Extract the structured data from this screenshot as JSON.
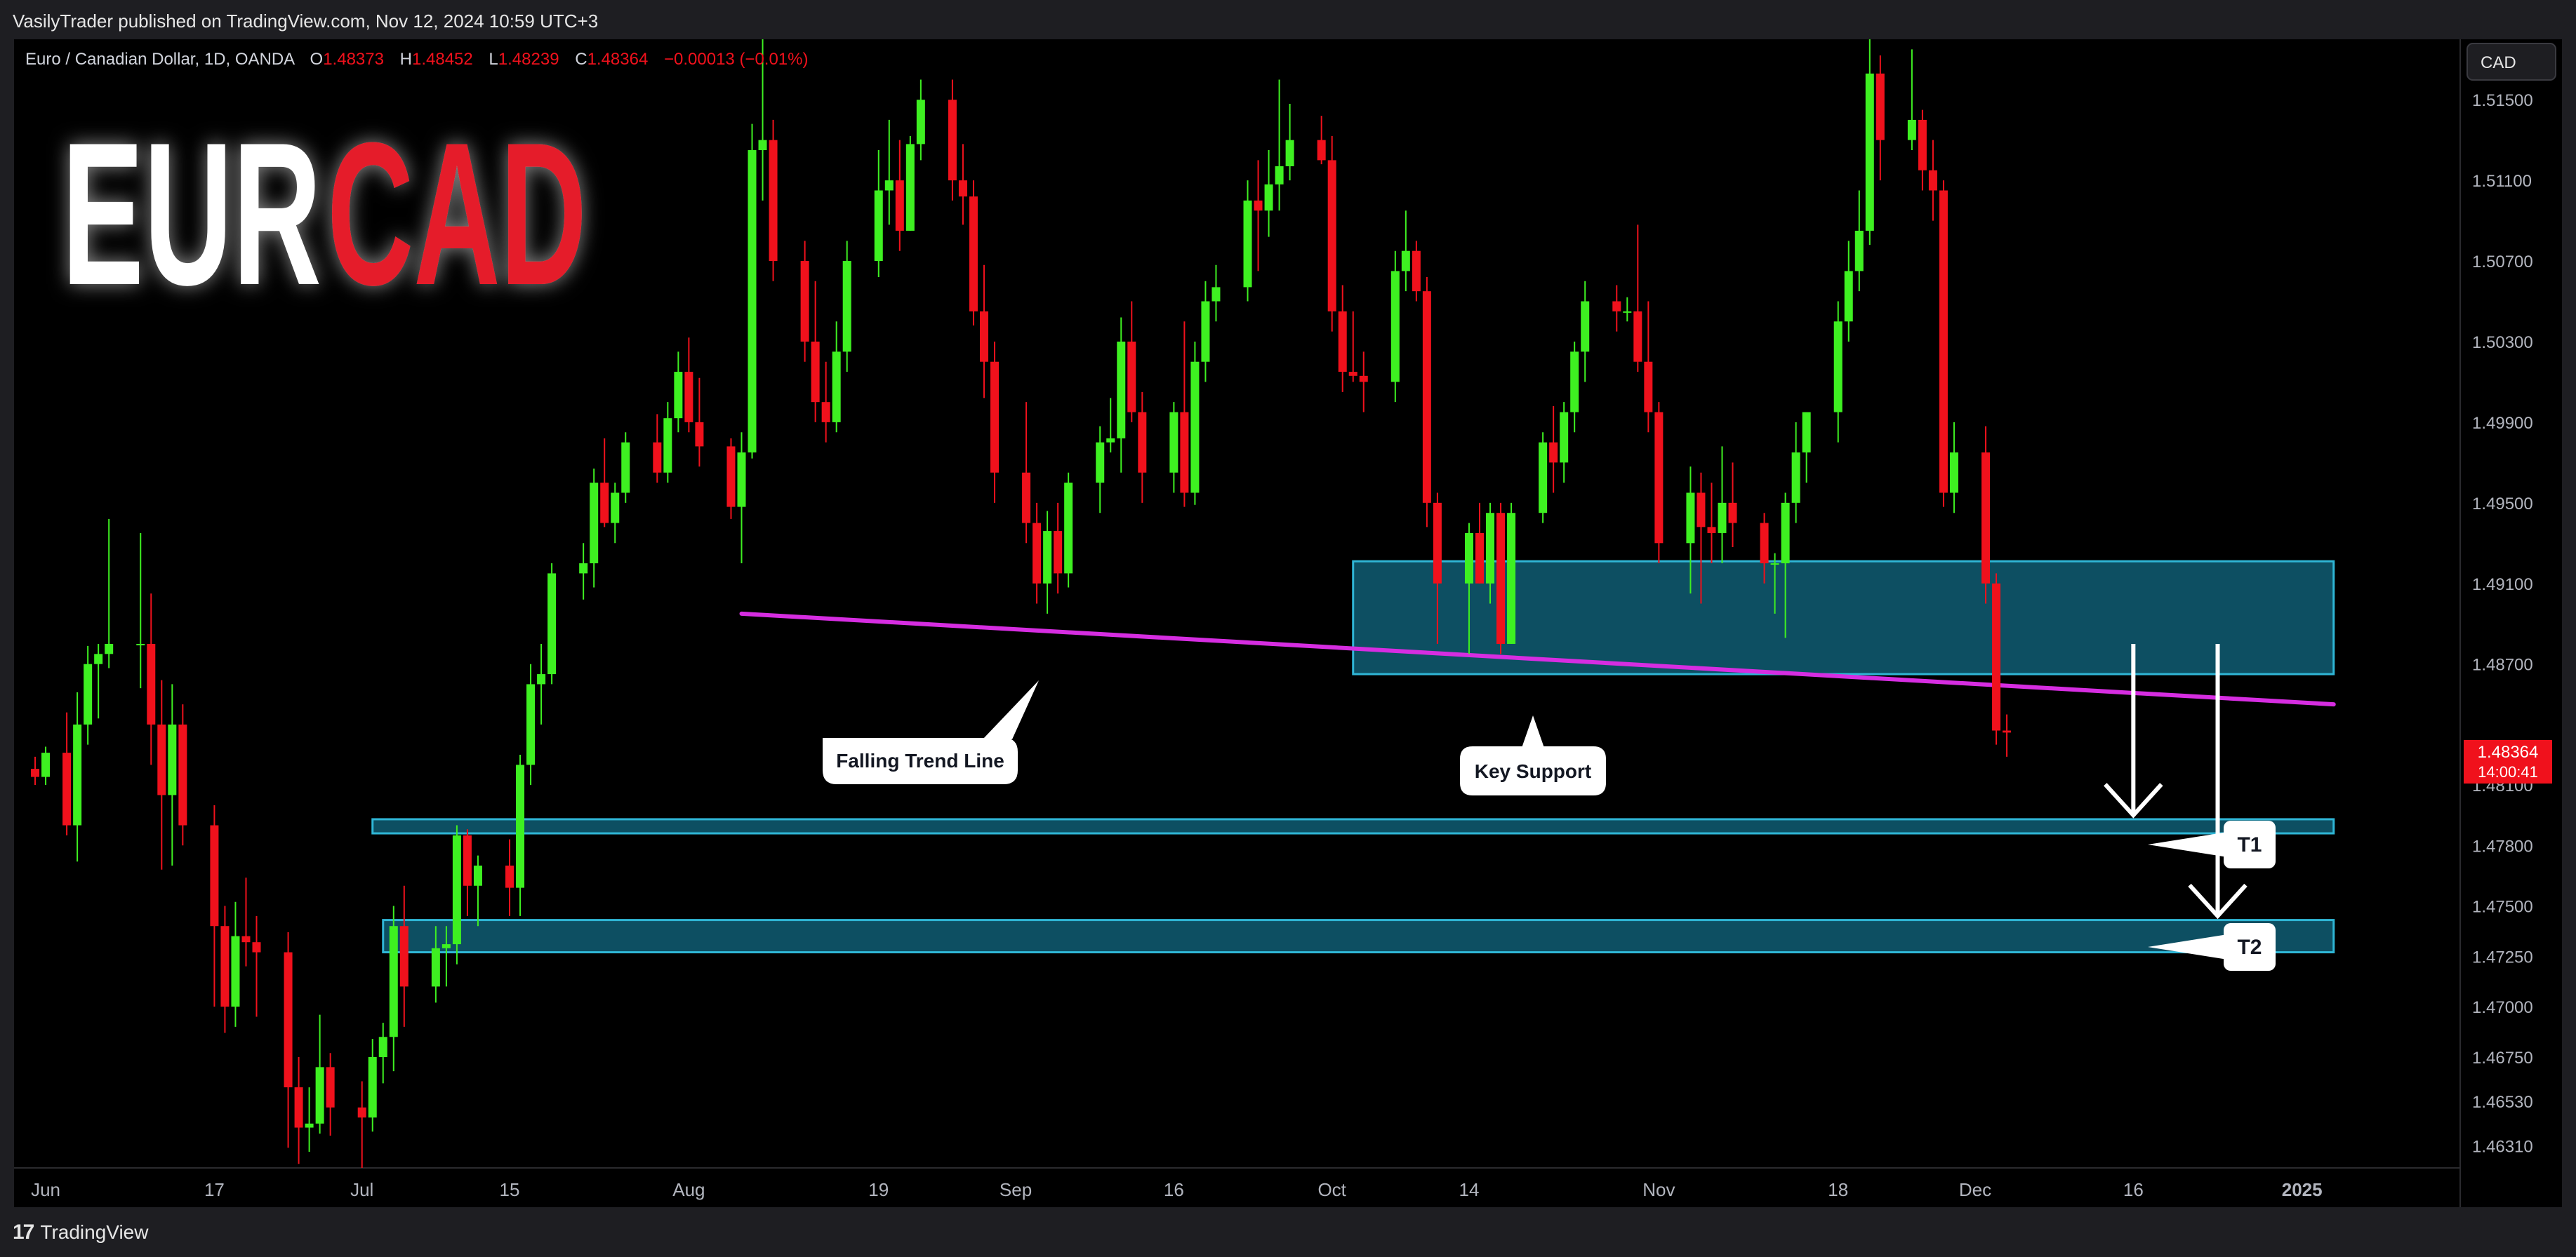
{
  "header": {
    "publish_line": "VasilyTrader published on TradingView.com, Nov 12, 2024 10:59 UTC+3"
  },
  "footer": {
    "brand_glyph": "17",
    "brand_name": "TradingView"
  },
  "symbol": {
    "name": "Euro / Canadian Dollar, 1D, OANDA",
    "o_label": "O",
    "o_value": "1.48373",
    "h_label": "H",
    "h_value": "1.48452",
    "l_label": "L",
    "l_value": "1.48239",
    "c_label": "C",
    "c_value": "1.48364",
    "change": "−0.00013 (−0.01%)"
  },
  "currency_button": "CAD",
  "big_title": {
    "part1": "EUR",
    "part2": "CAD"
  },
  "price_tag": {
    "price": "1.48364",
    "countdown": "14:00:41"
  },
  "annotations": {
    "trend": "Falling Trend Line",
    "support": "Key Support",
    "t1": "T1",
    "t2": "T2"
  },
  "colors": {
    "up": "#3ef021",
    "down": "#f0111c",
    "trend_line": "#d62de1",
    "zone_fill": "#0f5d73",
    "zone_stroke": "#2fb6d6",
    "title_red": "#e51e2b",
    "background": "#000000"
  },
  "chart_data": {
    "type": "candlestick",
    "x_ticks": [
      "Jun",
      "17",
      "Jul",
      "15",
      "Aug",
      "19",
      "Sep",
      "16",
      "Oct",
      "14",
      "Nov",
      "18",
      "Dec",
      "16",
      "2025"
    ],
    "y_ticks": [
      "1.51500",
      "1.51100",
      "1.50700",
      "1.50300",
      "1.49900",
      "1.49500",
      "1.49100",
      "1.48700",
      "1.48100",
      "1.47800",
      "1.47500",
      "1.47250",
      "1.47000",
      "1.46750",
      "1.46530",
      "1.46310"
    ],
    "y_range": [
      1.462,
      1.518
    ],
    "x_range": [
      "2024-05-29",
      "2025-01-16"
    ],
    "ohlc": [
      [
        "2024-05-31",
        1.4818,
        1.4824,
        1.481,
        1.4814
      ],
      [
        "2024-06-01",
        1.4814,
        1.4829,
        1.481,
        1.4826
      ],
      [
        "2024-06-03",
        1.4826,
        1.4846,
        1.4785,
        1.479
      ],
      [
        "2024-06-04",
        1.479,
        1.4856,
        1.4772,
        1.484
      ],
      [
        "2024-06-05",
        1.484,
        1.4879,
        1.483,
        1.487
      ],
      [
        "2024-06-06",
        1.487,
        1.488,
        1.4843,
        1.4875
      ],
      [
        "2024-06-07",
        1.4875,
        1.4942,
        1.4868,
        1.488
      ],
      [
        "2024-06-10",
        1.488,
        1.4935,
        1.4858,
        1.488
      ],
      [
        "2024-06-11",
        1.488,
        1.4905,
        1.482,
        1.484
      ],
      [
        "2024-06-12",
        1.484,
        1.4862,
        1.4768,
        1.4805
      ],
      [
        "2024-06-13",
        1.4805,
        1.486,
        1.477,
        1.484
      ],
      [
        "2024-06-14",
        1.484,
        1.485,
        1.478,
        1.479
      ],
      [
        "2024-06-17",
        1.479,
        1.48,
        1.47,
        1.474
      ],
      [
        "2024-06-18",
        1.474,
        1.475,
        1.4687,
        1.47
      ],
      [
        "2024-06-19",
        1.47,
        1.4752,
        1.469,
        1.4735
      ],
      [
        "2024-06-20",
        1.4735,
        1.4764,
        1.472,
        1.4732
      ],
      [
        "2024-06-21",
        1.4732,
        1.4745,
        1.4695,
        1.4727
      ],
      [
        "2024-06-24",
        1.4727,
        1.4737,
        1.463,
        1.466
      ],
      [
        "2024-06-25",
        1.466,
        1.4675,
        1.4622,
        1.464
      ],
      [
        "2024-06-26",
        1.464,
        1.466,
        1.4628,
        1.4642
      ],
      [
        "2024-06-27",
        1.4642,
        1.4696,
        1.4637,
        1.467
      ],
      [
        "2024-06-28",
        1.467,
        1.4677,
        1.4636,
        1.465
      ],
      [
        "2024-07-01",
        1.465,
        1.4663,
        1.462,
        1.4645
      ],
      [
        "2024-07-02",
        1.4645,
        1.4684,
        1.4638,
        1.4675
      ],
      [
        "2024-07-03",
        1.4675,
        1.4692,
        1.4662,
        1.4685
      ],
      [
        "2024-07-04",
        1.4685,
        1.475,
        1.4668,
        1.474
      ],
      [
        "2024-07-05",
        1.474,
        1.476,
        1.469,
        1.471
      ],
      [
        "2024-07-08",
        1.471,
        1.474,
        1.4702,
        1.4729
      ],
      [
        "2024-07-09",
        1.4729,
        1.474,
        1.471,
        1.4731
      ],
      [
        "2024-07-10",
        1.4731,
        1.479,
        1.4721,
        1.4785
      ],
      [
        "2024-07-11",
        1.4785,
        1.4788,
        1.4745,
        1.476
      ],
      [
        "2024-07-12",
        1.476,
        1.4775,
        1.474,
        1.477
      ],
      [
        "2024-07-15",
        1.477,
        1.4783,
        1.4745,
        1.4759
      ],
      [
        "2024-07-16",
        1.4759,
        1.4825,
        1.4745,
        1.482
      ],
      [
        "2024-07-17",
        1.482,
        1.487,
        1.481,
        1.486
      ],
      [
        "2024-07-18",
        1.486,
        1.488,
        1.484,
        1.4865
      ],
      [
        "2024-07-19",
        1.4865,
        1.492,
        1.486,
        1.4915
      ],
      [
        "2024-07-22",
        1.4915,
        1.493,
        1.4902,
        1.492
      ],
      [
        "2024-07-23",
        1.492,
        1.4967,
        1.4908,
        1.496
      ],
      [
        "2024-07-24",
        1.496,
        1.4982,
        1.4938,
        1.494
      ],
      [
        "2024-07-25",
        1.494,
        1.496,
        1.493,
        1.4955
      ],
      [
        "2024-07-26",
        1.4955,
        1.4985,
        1.495,
        1.498
      ],
      [
        "2024-07-29",
        1.498,
        1.4994,
        1.496,
        1.4965
      ],
      [
        "2024-07-30",
        1.4965,
        1.5,
        1.496,
        1.4992
      ],
      [
        "2024-07-31",
        1.4992,
        1.5025,
        1.4985,
        1.5015
      ],
      [
        "2024-08-01",
        1.5015,
        1.5032,
        1.4985,
        1.499
      ],
      [
        "2024-08-02",
        1.499,
        1.5012,
        1.4968,
        1.4978
      ],
      [
        "2024-08-05",
        1.4978,
        1.4982,
        1.4942,
        1.4948
      ],
      [
        "2024-08-06",
        1.4948,
        1.4985,
        1.492,
        1.4975
      ],
      [
        "2024-08-07",
        1.4975,
        1.5138,
        1.4972,
        1.5125
      ],
      [
        "2024-08-08",
        1.5125,
        1.518,
        1.51,
        1.513
      ],
      [
        "2024-08-09",
        1.513,
        1.514,
        1.506,
        1.507
      ],
      [
        "2024-08-12",
        1.507,
        1.508,
        1.502,
        1.503
      ],
      [
        "2024-08-13",
        1.503,
        1.506,
        1.499,
        1.5
      ],
      [
        "2024-08-14",
        1.5,
        1.502,
        1.498,
        1.499
      ],
      [
        "2024-08-15",
        1.499,
        1.504,
        1.4985,
        1.5025
      ],
      [
        "2024-08-16",
        1.5025,
        1.508,
        1.5015,
        1.507
      ],
      [
        "2024-08-19",
        1.507,
        1.5125,
        1.5062,
        1.5105
      ],
      [
        "2024-08-20",
        1.5105,
        1.514,
        1.5088,
        1.511
      ],
      [
        "2024-08-21",
        1.511,
        1.513,
        1.5075,
        1.5085
      ],
      [
        "2024-08-22",
        1.5085,
        1.5132,
        1.5085,
        1.5128
      ],
      [
        "2024-08-23",
        1.5128,
        1.516,
        1.512,
        1.515
      ],
      [
        "2024-08-26",
        1.515,
        1.516,
        1.51,
        1.511
      ],
      [
        "2024-08-27",
        1.511,
        1.5128,
        1.5088,
        1.5102
      ],
      [
        "2024-08-28",
        1.5102,
        1.511,
        1.5038,
        1.5045
      ],
      [
        "2024-08-29",
        1.5045,
        1.5068,
        1.5002,
        1.502
      ],
      [
        "2024-08-30",
        1.502,
        1.503,
        1.495,
        1.4965
      ],
      [
        "2024-09-02",
        1.4965,
        1.5,
        1.493,
        1.494
      ],
      [
        "2024-09-03",
        1.494,
        1.495,
        1.49,
        1.491
      ],
      [
        "2024-09-04",
        1.491,
        1.4946,
        1.4895,
        1.4936
      ],
      [
        "2024-09-05",
        1.4936,
        1.495,
        1.4905,
        1.4915
      ],
      [
        "2024-09-06",
        1.4915,
        1.4965,
        1.4908,
        1.496
      ],
      [
        "2024-09-09",
        1.496,
        1.4988,
        1.4945,
        1.498
      ],
      [
        "2024-09-10",
        1.498,
        1.5002,
        1.4975,
        1.4982
      ],
      [
        "2024-09-11",
        1.4982,
        1.5042,
        1.4965,
        1.503
      ],
      [
        "2024-09-12",
        1.503,
        1.505,
        1.499,
        1.4995
      ],
      [
        "2024-09-13",
        1.4995,
        1.5005,
        1.495,
        1.4965
      ],
      [
        "2024-09-16",
        1.4965,
        1.5,
        1.4955,
        1.4995
      ],
      [
        "2024-09-17",
        1.4995,
        1.504,
        1.4948,
        1.4955
      ],
      [
        "2024-09-18",
        1.4955,
        1.503,
        1.4949,
        1.502
      ],
      [
        "2024-09-19",
        1.502,
        1.506,
        1.501,
        1.505
      ],
      [
        "2024-09-20",
        1.505,
        1.5068,
        1.504,
        1.5057
      ],
      [
        "2024-09-23",
        1.5057,
        1.511,
        1.505,
        1.51
      ],
      [
        "2024-09-24",
        1.51,
        1.512,
        1.5065,
        1.5095
      ],
      [
        "2024-09-25",
        1.5095,
        1.5125,
        1.5082,
        1.5108
      ],
      [
        "2024-09-26",
        1.5108,
        1.516,
        1.5095,
        1.5117
      ],
      [
        "2024-09-27",
        1.5117,
        1.5148,
        1.511,
        1.513
      ],
      [
        "2024-09-30",
        1.513,
        1.5142,
        1.5118,
        1.512
      ],
      [
        "2024-10-01",
        1.512,
        1.5132,
        1.5035,
        1.5045
      ],
      [
        "2024-10-02",
        1.5045,
        1.5058,
        1.5005,
        1.5015
      ],
      [
        "2024-10-03",
        1.5015,
        1.5045,
        1.501,
        1.5013
      ],
      [
        "2024-10-04",
        1.5013,
        1.5025,
        1.4995,
        1.501
      ],
      [
        "2024-10-07",
        1.501,
        1.5075,
        1.5,
        1.5065
      ],
      [
        "2024-10-08",
        1.5065,
        1.5095,
        1.5055,
        1.5075
      ],
      [
        "2024-10-09",
        1.5075,
        1.508,
        1.505,
        1.5055
      ],
      [
        "2024-10-10",
        1.5055,
        1.5062,
        1.4938,
        1.495
      ],
      [
        "2024-10-11",
        1.495,
        1.4955,
        1.488,
        1.491
      ],
      [
        "2024-10-14",
        1.491,
        1.494,
        1.4875,
        1.4935
      ],
      [
        "2024-10-15",
        1.4935,
        1.495,
        1.491,
        1.491
      ],
      [
        "2024-10-16",
        1.491,
        1.495,
        1.49,
        1.4945
      ],
      [
        "2024-10-17",
        1.4945,
        1.495,
        1.4875,
        1.488
      ],
      [
        "2024-10-18",
        1.488,
        1.495,
        1.488,
        1.4945
      ],
      [
        "2024-10-21",
        1.4945,
        1.4985,
        1.494,
        1.498
      ],
      [
        "2024-10-22",
        1.498,
        1.4998,
        1.4955,
        1.497
      ],
      [
        "2024-10-23",
        1.497,
        1.5,
        1.496,
        1.4995
      ],
      [
        "2024-10-24",
        1.4995,
        1.503,
        1.4985,
        1.5025
      ],
      [
        "2024-10-25",
        1.5025,
        1.506,
        1.501,
        1.505
      ],
      [
        "2024-10-28",
        1.505,
        1.5058,
        1.5035,
        1.5045
      ],
      [
        "2024-10-29",
        1.5045,
        1.5052,
        1.504,
        1.5045
      ],
      [
        "2024-10-30",
        1.5045,
        1.5088,
        1.5015,
        1.502
      ],
      [
        "2024-10-31",
        1.502,
        1.505,
        1.4985,
        1.4995
      ],
      [
        "2024-11-01",
        1.4995,
        1.5,
        1.492,
        1.493
      ],
      [
        "2024-11-04",
        1.493,
        1.4968,
        1.4905,
        1.4955
      ],
      [
        "2024-11-05",
        1.4955,
        1.4965,
        1.49,
        1.4938
      ],
      [
        "2024-11-06",
        1.4938,
        1.496,
        1.492,
        1.4935
      ],
      [
        "2024-11-07",
        1.4935,
        1.4978,
        1.492,
        1.495
      ],
      [
        "2024-11-08",
        1.495,
        1.497,
        1.4928,
        1.494
      ],
      [
        "2024-11-11",
        1.494,
        1.4945,
        1.491,
        1.492
      ],
      [
        "2024-11-12",
        1.492,
        1.4925,
        1.4895,
        1.492
      ],
      [
        "2024-11-13",
        1.492,
        1.4955,
        1.4883,
        1.495
      ],
      [
        "2024-11-14",
        1.495,
        1.499,
        1.494,
        1.4975
      ],
      [
        "2024-11-15",
        1.4975,
        1.499,
        1.496,
        1.4995
      ],
      [
        "2024-11-18",
        1.4995,
        1.505,
        1.498,
        1.504
      ],
      [
        "2024-11-19",
        1.504,
        1.508,
        1.503,
        1.5065
      ],
      [
        "2024-11-20",
        1.5065,
        1.5105,
        1.5055,
        1.5085
      ],
      [
        "2024-11-21",
        1.5085,
        1.518,
        1.5078,
        1.5163
      ],
      [
        "2024-11-22",
        1.5163,
        1.5172,
        1.511,
        1.513
      ],
      [
        "2024-11-25",
        1.513,
        1.5175,
        1.5125,
        1.514
      ],
      [
        "2024-11-26",
        1.514,
        1.5145,
        1.5105,
        1.5115
      ],
      [
        "2024-11-27",
        1.5115,
        1.513,
        1.509,
        1.5105
      ],
      [
        "2024-11-28",
        1.5105,
        1.511,
        1.4948,
        1.4955
      ],
      [
        "2024-11-29",
        1.4955,
        1.499,
        1.4945,
        1.4975
      ],
      [
        "2024-12-02",
        1.4975,
        1.4988,
        1.49,
        1.491
      ],
      [
        "2024-12-03",
        1.491,
        1.4915,
        1.483,
        1.4837
      ],
      [
        "2024-12-04",
        1.4837,
        1.4845,
        1.4824,
        1.4836
      ]
    ],
    "trend_line": {
      "from": [
        "2024-08-06",
        1.4895
      ],
      "to": [
        "2025-01-04",
        1.485
      ]
    },
    "zones": [
      {
        "name": "Key Support",
        "from": "2024-10-03",
        "to": "2025-01-04",
        "low": 1.4865,
        "high": 1.4921
      },
      {
        "name": "T1",
        "from": "2024-07-02",
        "to": "2025-01-04",
        "low": 1.4786,
        "high": 1.4793
      },
      {
        "name": "T2",
        "from": "2024-07-03",
        "to": "2025-01-04",
        "low": 1.4727,
        "high": 1.4743
      }
    ],
    "target_arrows": [
      {
        "date": "2024-12-16",
        "from": 1.488,
        "to": 1.4795
      },
      {
        "date": "2024-12-24",
        "from": 1.488,
        "to": 1.4745
      }
    ]
  }
}
